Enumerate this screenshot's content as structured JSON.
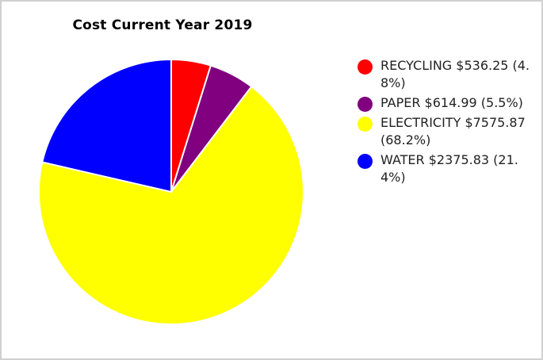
{
  "chart_data": {
    "type": "pie",
    "title": "Cost Current Year 2019",
    "legend_position": "right",
    "slices": [
      {
        "label": "RECYCLING $536.25 (4.8%)",
        "name": "RECYCLING",
        "value": 536.25,
        "percent": 4.8,
        "color": "#ff0000"
      },
      {
        "label": "PAPER $614.99 (5.5%)",
        "name": "PAPER",
        "value": 614.99,
        "percent": 5.5,
        "color": "#800080"
      },
      {
        "label": "ELECTRICITY $7575.87 (68.2%)",
        "name": "ELECTRICITY",
        "value": 7575.87,
        "percent": 68.2,
        "color": "#ffff00"
      },
      {
        "label": "WATER $2375.83 (21.4%)",
        "name": "WATER",
        "value": 2375.83,
        "percent": 21.4,
        "color": "#0000ff"
      }
    ]
  }
}
